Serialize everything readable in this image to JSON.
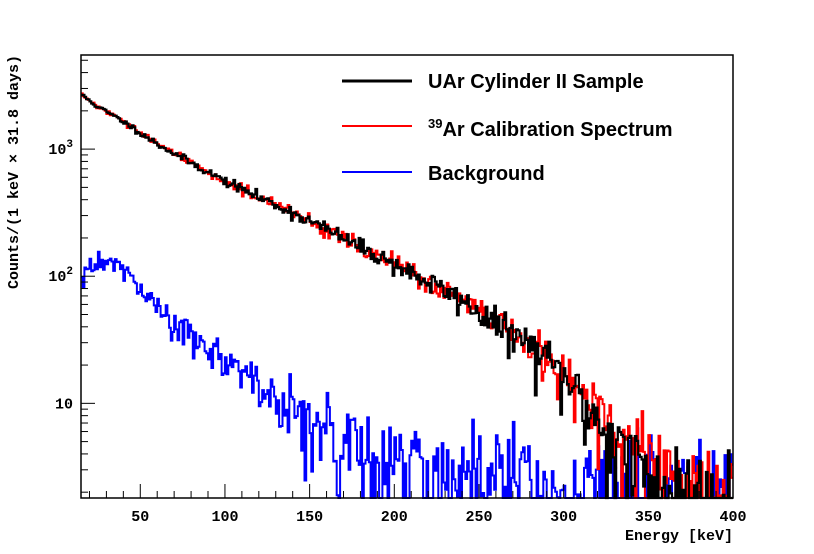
{
  "chart_data": {
    "type": "line",
    "title": "",
    "xlabel": "Energy [keV]",
    "ylabel": "Counts/(1 keV × 31.8 days)",
    "xlim": [
      15,
      400
    ],
    "ylim": [
      1.8,
      5500
    ],
    "yscale": "log",
    "grid": false,
    "legend_position": "top-right",
    "x_ticks": [
      50,
      100,
      150,
      200,
      250,
      300,
      350,
      400
    ],
    "x_tick_labels": [
      "50",
      "100",
      "150",
      "200",
      "250",
      "300",
      "350",
      "400"
    ],
    "y_ticks": [
      10,
      100,
      1000
    ],
    "y_tick_labels": [
      {
        "base": "10",
        "exp": ""
      },
      {
        "base": "10",
        "exp": "2"
      },
      {
        "base": "10",
        "exp": "3"
      }
    ],
    "series": [
      {
        "name": "UAr Cylinder II Sample",
        "name_sup": "",
        "name_main": "UAr Cylinder II Sample",
        "color": "#000000",
        "x": [
          15,
          25,
          40,
          60,
          80,
          100,
          120,
          140,
          160,
          180,
          200,
          220,
          240,
          260,
          275,
          290,
          300,
          310,
          320,
          330,
          340,
          350,
          360,
          370
        ],
        "y": [
          2700,
          2150,
          1650,
          1100,
          780,
          560,
          420,
          315,
          235,
          170,
          125,
          90,
          65,
          42,
          32,
          22,
          16,
          11,
          7.5,
          5,
          3.5,
          2.5,
          2.0,
          1.9
        ]
      },
      {
        "name": "39Ar Calibration Spectrum",
        "name_sup": "39",
        "name_main": "Ar Calibration Spectrum",
        "color": "#ff0000",
        "x": [
          15,
          25,
          40,
          60,
          80,
          100,
          120,
          140,
          160,
          180,
          200,
          220,
          240,
          260,
          275,
          290,
          300,
          310,
          320,
          330,
          340,
          350,
          360,
          370
        ],
        "y": [
          2700,
          2150,
          1650,
          1100,
          780,
          560,
          420,
          315,
          235,
          170,
          125,
          90,
          65,
          42,
          32,
          22,
          16,
          12,
          8.5,
          6,
          4.5,
          3.5,
          2.5,
          1.9
        ]
      },
      {
        "name": "Background",
        "name_sup": "",
        "name_main": "Background",
        "color": "#0000ff",
        "x": [
          15,
          25,
          35,
          45,
          55,
          65,
          75,
          85,
          95,
          105,
          115,
          125,
          135,
          145,
          160,
          180,
          200,
          220,
          260,
          300,
          340,
          400
        ],
        "y": [
          115,
          120,
          130,
          95,
          65,
          48,
          38,
          30,
          24,
          19,
          15,
          12,
          10,
          8,
          6,
          4.5,
          3.5,
          3,
          2.5,
          2.2,
          2.0,
          1.9
        ]
      }
    ]
  }
}
